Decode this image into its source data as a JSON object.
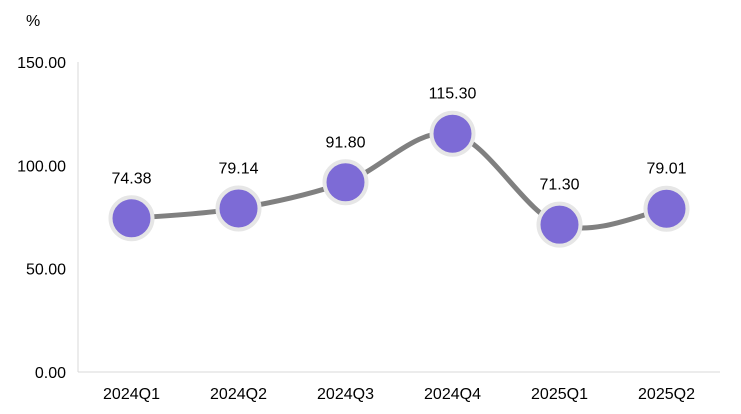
{
  "chart_data": {
    "type": "line",
    "unit_label": "%",
    "categories": [
      "2024Q1",
      "2024Q2",
      "2024Q3",
      "2024Q4",
      "2025Q1",
      "2025Q2"
    ],
    "series": [
      {
        "values": [
          74.38,
          79.14,
          91.8,
          115.3,
          71.3,
          79.01
        ],
        "value_labels": [
          "74.38",
          "79.14",
          "91.80",
          "115.30",
          "71.30",
          "79.01"
        ]
      }
    ],
    "ylim": [
      0,
      150
    ],
    "yticks": [
      "0.00",
      "50.00",
      "100.00",
      "150.00"
    ],
    "ytick_values": [
      0,
      50,
      100,
      150
    ],
    "smooth": true,
    "grid": false,
    "legend": "none",
    "colors": {
      "line": "#808080",
      "marker_fill": "#7d6bd6",
      "marker_stroke": "#ffffff",
      "axis": "#d9d9d9"
    }
  }
}
